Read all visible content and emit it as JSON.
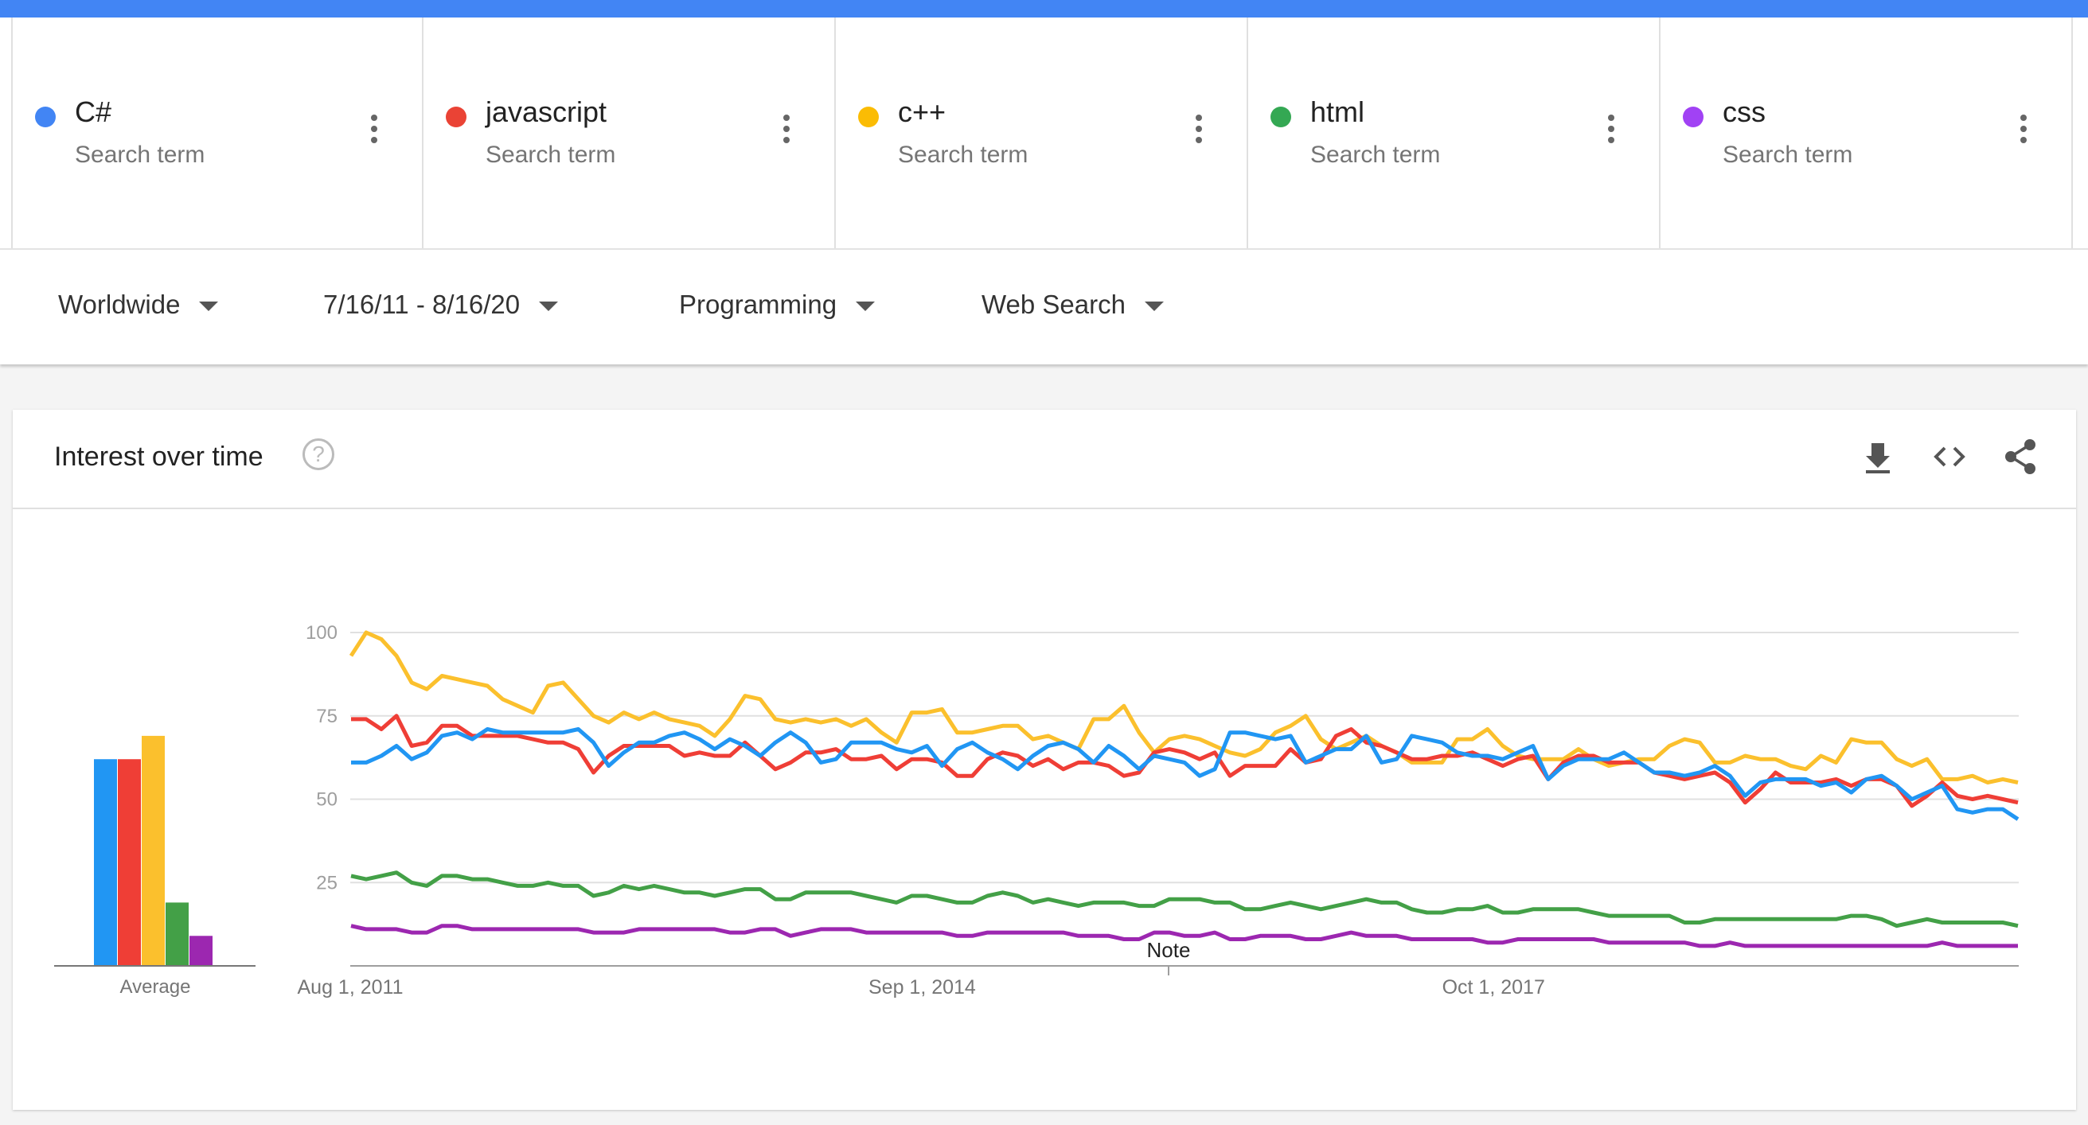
{
  "terms": [
    {
      "label": "C#",
      "sub": "Search term",
      "color": "#4285f4"
    },
    {
      "label": "javascript",
      "sub": "Search term",
      "color": "#ea4335"
    },
    {
      "label": "c++",
      "sub": "Search term",
      "color": "#fbbc04"
    },
    {
      "label": "html",
      "sub": "Search term",
      "color": "#34a853"
    },
    {
      "label": "css",
      "sub": "Search term",
      "color": "#a142f4"
    }
  ],
  "filters": {
    "region": "Worldwide",
    "dates": "7/16/11 - 8/16/20",
    "category": "Programming",
    "search_type": "Web Search"
  },
  "card": {
    "title": "Interest over time",
    "help_icon": "help-icon",
    "tools": [
      "download-icon",
      "embed-icon",
      "share-icon"
    ]
  },
  "chart_data": {
    "type": "line",
    "ylim": [
      0,
      100
    ],
    "yticks": [
      "100",
      "75",
      "50",
      "25"
    ],
    "x_tick_labels": [
      "Aug 1, 2011",
      "Sep 1, 2014",
      "Oct 1, 2017"
    ],
    "note_label": "Note",
    "average_label": "Average",
    "averages": [
      {
        "name": "C#",
        "value": 62,
        "color": "#2196f3"
      },
      {
        "name": "javascript",
        "value": 62,
        "color": "#ef3e36"
      },
      {
        "name": "c++",
        "value": 69,
        "color": "#fbc02d"
      },
      {
        "name": "html",
        "value": 19,
        "color": "#43a047"
      },
      {
        "name": "css",
        "value": 9,
        "color": "#9c27b0"
      }
    ],
    "x_start": "2011-08-01",
    "x_end": "2020-08-01",
    "x_tick_dates": [
      "2011-08-01",
      "2014-09-01",
      "2017-10-01"
    ],
    "series": [
      {
        "name": "C#",
        "color": "#2196f3",
        "values": [
          61,
          61,
          63,
          66,
          62,
          64,
          69,
          70,
          68,
          71,
          70,
          70,
          70,
          70,
          70,
          71,
          67,
          60,
          64,
          67,
          67,
          69,
          70,
          68,
          65,
          68,
          66,
          63,
          67,
          70,
          67,
          61,
          62,
          67,
          67,
          67,
          65,
          64,
          66,
          60,
          65,
          67,
          64,
          62,
          59,
          63,
          66,
          67,
          65,
          61,
          66,
          63,
          59,
          63,
          62,
          61,
          57,
          59,
          70,
          70,
          69,
          68,
          69,
          61,
          63,
          65,
          65,
          69,
          61,
          62,
          69,
          68,
          67,
          64,
          63,
          63,
          62,
          64,
          66,
          56,
          60,
          62,
          62,
          62,
          64,
          61,
          58,
          58,
          57,
          58,
          60,
          57,
          51,
          55,
          56,
          56,
          56,
          54,
          55,
          52,
          56,
          57,
          54,
          50,
          52,
          54,
          47,
          46,
          47,
          47,
          44
        ]
      },
      {
        "name": "javascript",
        "color": "#ef3e36",
        "values": [
          74,
          74,
          71,
          75,
          66,
          67,
          72,
          72,
          69,
          69,
          69,
          69,
          68,
          67,
          67,
          65,
          58,
          63,
          66,
          66,
          66,
          66,
          63,
          64,
          63,
          63,
          67,
          63,
          59,
          61,
          64,
          64,
          65,
          62,
          62,
          63,
          59,
          62,
          62,
          61,
          57,
          57,
          62,
          64,
          63,
          60,
          62,
          59,
          61,
          61,
          60,
          57,
          58,
          64,
          65,
          64,
          62,
          64,
          57,
          60,
          60,
          60,
          65,
          61,
          62,
          69,
          71,
          67,
          66,
          64,
          62,
          62,
          63,
          63,
          64,
          62,
          60,
          62,
          63,
          56,
          61,
          63,
          63,
          61,
          61,
          61,
          58,
          57,
          56,
          57,
          58,
          55,
          49,
          53,
          58,
          55,
          55,
          55,
          56,
          54,
          56,
          56,
          54,
          48,
          51,
          55,
          51,
          50,
          51,
          50,
          49
        ]
      },
      {
        "name": "c++",
        "color": "#fbc02d",
        "values": [
          93,
          100,
          98,
          93,
          85,
          83,
          87,
          86,
          85,
          84,
          80,
          78,
          76,
          84,
          85,
          80,
          75,
          73,
          76,
          74,
          76,
          74,
          73,
          72,
          69,
          74,
          81,
          80,
          74,
          73,
          74,
          73,
          74,
          72,
          74,
          70,
          67,
          76,
          76,
          77,
          70,
          70,
          71,
          72,
          72,
          68,
          69,
          67,
          65,
          74,
          74,
          78,
          70,
          64,
          68,
          69,
          68,
          66,
          64,
          63,
          65,
          70,
          72,
          75,
          68,
          65,
          67,
          69,
          66,
          64,
          61,
          61,
          61,
          68,
          68,
          71,
          66,
          63,
          62,
          62,
          62,
          65,
          62,
          60,
          61,
          62,
          62,
          66,
          68,
          67,
          61,
          61,
          63,
          62,
          62,
          60,
          59,
          63,
          61,
          68,
          67,
          67,
          62,
          60,
          62,
          56,
          56,
          57,
          55,
          56,
          55
        ]
      },
      {
        "name": "html",
        "color": "#43a047",
        "values": [
          27,
          26,
          27,
          28,
          25,
          24,
          27,
          27,
          26,
          26,
          25,
          24,
          24,
          25,
          24,
          24,
          21,
          22,
          24,
          23,
          24,
          23,
          22,
          22,
          21,
          22,
          23,
          23,
          20,
          20,
          22,
          22,
          22,
          22,
          21,
          20,
          19,
          21,
          21,
          20,
          19,
          19,
          21,
          22,
          21,
          19,
          20,
          19,
          18,
          19,
          19,
          19,
          18,
          18,
          20,
          20,
          20,
          19,
          19,
          17,
          17,
          18,
          19,
          18,
          17,
          18,
          19,
          20,
          19,
          19,
          17,
          16,
          16,
          17,
          17,
          18,
          16,
          16,
          17,
          17,
          17,
          17,
          16,
          15,
          15,
          15,
          15,
          15,
          13,
          13,
          14,
          14,
          14,
          14,
          14,
          14,
          14,
          14,
          14,
          15,
          15,
          14,
          12,
          13,
          14,
          13,
          13,
          13,
          13,
          13,
          12
        ]
      },
      {
        "name": "css",
        "color": "#9c27b0",
        "values": [
          12,
          11,
          11,
          11,
          10,
          10,
          12,
          12,
          11,
          11,
          11,
          11,
          11,
          11,
          11,
          11,
          10,
          10,
          10,
          11,
          11,
          11,
          11,
          11,
          11,
          10,
          10,
          11,
          11,
          9,
          10,
          11,
          11,
          11,
          10,
          10,
          10,
          10,
          10,
          10,
          9,
          9,
          10,
          10,
          10,
          10,
          10,
          10,
          9,
          9,
          9,
          8,
          8,
          10,
          10,
          9,
          9,
          10,
          8,
          8,
          9,
          9,
          9,
          8,
          8,
          9,
          10,
          9,
          9,
          9,
          8,
          8,
          8,
          8,
          8,
          7,
          7,
          8,
          8,
          8,
          8,
          8,
          8,
          7,
          7,
          7,
          7,
          7,
          7,
          6,
          6,
          7,
          6,
          6,
          6,
          6,
          6,
          6,
          6,
          6,
          6,
          6,
          6,
          6,
          6,
          7,
          6,
          6,
          6,
          6,
          6
        ]
      }
    ]
  }
}
